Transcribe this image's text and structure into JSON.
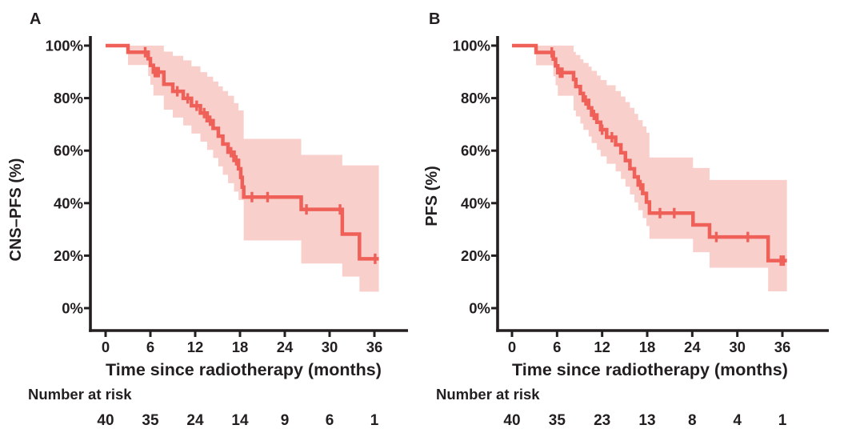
{
  "colors": {
    "curve": "#ef6058",
    "band": "#f9cfcc",
    "axis": "#231f20",
    "text": "#231f20",
    "background": "#ffffff"
  },
  "panels": [
    {
      "panel_label": "A",
      "number_at_risk_label": "Number at risk"
    },
    {
      "panel_label": "B",
      "number_at_risk_label": "Number at risk"
    }
  ],
  "chart_data": [
    {
      "type": "line",
      "subtype": "kaplan-meier-step-curve-with-confidence-band",
      "panel": "A",
      "ylabel": "CNS–PFS (%)",
      "xlabel": "Time since radiotherapy (months)",
      "xlim": [
        0,
        40
      ],
      "ylim": [
        0,
        100
      ],
      "x_ticks": [
        0,
        6,
        12,
        18,
        24,
        30,
        36
      ],
      "x_tick_labels": [
        "0",
        "6",
        "12",
        "18",
        "24",
        "30",
        "36"
      ],
      "y_ticks_pct": [
        100,
        80,
        60,
        40,
        20,
        0
      ],
      "y_tick_labels": [
        "100%",
        "80%",
        "60%",
        "40%",
        "20%",
        "0%"
      ],
      "start": [
        0,
        100
      ],
      "steps": [
        [
          3.0,
          97.5
        ],
        [
          5.7,
          95.0
        ],
        [
          6.0,
          92.5
        ],
        [
          6.4,
          89.9
        ],
        [
          7.8,
          85.3
        ],
        [
          9.0,
          82.6
        ],
        [
          10.4,
          79.9
        ],
        [
          11.5,
          77.1
        ],
        [
          12.7,
          74.3
        ],
        [
          13.6,
          71.4
        ],
        [
          14.4,
          68.5
        ],
        [
          15.1,
          65.5
        ],
        [
          15.7,
          62.5
        ],
        [
          16.4,
          59.4
        ],
        [
          17.2,
          56.3
        ],
        [
          17.8,
          53.1
        ],
        [
          18.1,
          49.8
        ],
        [
          18.3,
          46.1
        ],
        [
          18.5,
          42.3
        ],
        [
          26.2,
          37.6
        ],
        [
          31.7,
          28.2
        ],
        [
          34.0,
          18.8
        ]
      ],
      "curve_end_time": 36.6,
      "censor_marks": [
        [
          5.3,
          97.5
        ],
        [
          6.6,
          89.9
        ],
        [
          6.85,
          89.9
        ],
        [
          7.1,
          89.9
        ],
        [
          9.6,
          82.6
        ],
        [
          11.0,
          79.9
        ],
        [
          12.2,
          77.1
        ],
        [
          13.2,
          74.3
        ],
        [
          14.0,
          71.4
        ],
        [
          16.8,
          59.4
        ],
        [
          17.5,
          56.3
        ],
        [
          19.6,
          42.3
        ],
        [
          21.7,
          42.3
        ],
        [
          26.9,
          37.6
        ],
        [
          31.4,
          37.6
        ],
        [
          36.1,
          18.8
        ]
      ],
      "confidence_band": [
        [
          3.0,
          100,
          92.6
        ],
        [
          5.7,
          100,
          88.4
        ],
        [
          6.0,
          100,
          85.1
        ],
        [
          6.4,
          100,
          81.0
        ],
        [
          7.8,
          97.7,
          75.6
        ],
        [
          9.0,
          96.1,
          72.6
        ],
        [
          10.4,
          94.4,
          69.6
        ],
        [
          11.5,
          92.1,
          66.5
        ],
        [
          12.7,
          89.9,
          63.4
        ],
        [
          13.6,
          88.2,
          60.3
        ],
        [
          14.4,
          86.3,
          57.2
        ],
        [
          15.1,
          84.5,
          54.0
        ],
        [
          15.7,
          82.7,
          50.8
        ],
        [
          16.4,
          80.9,
          47.6
        ],
        [
          17.2,
          78.1,
          44.4
        ],
        [
          17.8,
          75.3,
          41.2
        ],
        [
          18.5,
          64.5,
          25.8
        ],
        [
          26.2,
          58.4,
          17.0
        ],
        [
          31.7,
          54.4,
          12.0
        ],
        [
          34.0,
          54.4,
          6.3
        ]
      ],
      "number_at_risk": {
        "times": [
          0,
          6,
          12,
          18,
          24,
          30,
          36
        ],
        "counts": [
          "40",
          "35",
          "24",
          "14",
          "9",
          "6",
          "1"
        ]
      }
    },
    {
      "type": "line",
      "subtype": "kaplan-meier-step-curve-with-confidence-band",
      "panel": "B",
      "ylabel": "PFS (%)",
      "xlabel": "Time since radiotherapy (months)",
      "xlim": [
        0,
        40
      ],
      "ylim": [
        0,
        100
      ],
      "x_ticks": [
        0,
        6,
        12,
        18,
        24,
        30,
        36
      ],
      "x_tick_labels": [
        "0",
        "6",
        "12",
        "18",
        "24",
        "30",
        "36"
      ],
      "y_ticks_pct": [
        100,
        80,
        60,
        40,
        20,
        0
      ],
      "y_tick_labels": [
        "100%",
        "80%",
        "60%",
        "40%",
        "20%",
        "0%"
      ],
      "start": [
        0,
        100
      ],
      "steps": [
        [
          3.2,
          97.4
        ],
        [
          5.5,
          94.9
        ],
        [
          5.8,
          92.3
        ],
        [
          6.1,
          89.7
        ],
        [
          8.2,
          87.1
        ],
        [
          8.5,
          84.4
        ],
        [
          9.1,
          81.8
        ],
        [
          9.5,
          79.1
        ],
        [
          10.2,
          76.3
        ],
        [
          10.6,
          73.6
        ],
        [
          11.3,
          70.8
        ],
        [
          11.8,
          68.0
        ],
        [
          12.6,
          65.1
        ],
        [
          13.8,
          62.2
        ],
        [
          14.5,
          59.2
        ],
        [
          15.1,
          56.2
        ],
        [
          15.7,
          53.1
        ],
        [
          16.3,
          50.0
        ],
        [
          16.8,
          46.9
        ],
        [
          17.4,
          43.7
        ],
        [
          17.9,
          40.4
        ],
        [
          18.3,
          36.2
        ],
        [
          24.1,
          31.7
        ],
        [
          26.3,
          27.1
        ],
        [
          34.1,
          18.1
        ]
      ],
      "curve_end_time": 36.6,
      "censor_marks": [
        [
          5.3,
          97.4
        ],
        [
          6.4,
          89.7
        ],
        [
          6.7,
          89.7
        ],
        [
          9.8,
          79.1
        ],
        [
          10.9,
          73.6
        ],
        [
          12.0,
          68.0
        ],
        [
          13.3,
          65.1
        ],
        [
          17.1,
          46.9
        ],
        [
          19.7,
          36.2
        ],
        [
          21.6,
          36.2
        ],
        [
          27.2,
          27.1
        ],
        [
          31.4,
          27.1
        ],
        [
          35.8,
          18.1
        ],
        [
          36.15,
          18.1
        ]
      ],
      "confidence_band": [
        [
          3.2,
          100,
          92.5
        ],
        [
          5.5,
          100,
          88.3
        ],
        [
          5.8,
          100,
          84.9
        ],
        [
          6.1,
          100,
          80.9
        ],
        [
          8.2,
          97.6,
          75.3
        ],
        [
          8.5,
          96.4,
          73.0
        ],
        [
          9.1,
          94.8,
          70.3
        ],
        [
          9.5,
          93.4,
          67.9
        ],
        [
          10.2,
          92.0,
          65.4
        ],
        [
          10.6,
          90.4,
          62.9
        ],
        [
          11.3,
          88.6,
          60.3
        ],
        [
          11.8,
          86.9,
          57.8
        ],
        [
          12.6,
          84.9,
          55.0
        ],
        [
          13.8,
          82.7,
          52.1
        ],
        [
          14.5,
          80.6,
          49.2
        ],
        [
          15.1,
          78.5,
          46.3
        ],
        [
          15.7,
          76.3,
          43.3
        ],
        [
          16.3,
          74.0,
          40.3
        ],
        [
          16.8,
          71.6,
          37.3
        ],
        [
          17.4,
          69.2,
          34.3
        ],
        [
          17.9,
          66.8,
          31.3
        ],
        [
          18.3,
          57.4,
          26.4
        ],
        [
          24.1,
          53.4,
          21.3
        ],
        [
          26.3,
          48.8,
          15.4
        ],
        [
          34.1,
          48.8,
          6.4
        ]
      ],
      "number_at_risk": {
        "times": [
          0,
          6,
          12,
          18,
          24,
          30,
          36
        ],
        "counts": [
          "40",
          "35",
          "23",
          "13",
          "8",
          "4",
          "1"
        ]
      }
    }
  ]
}
